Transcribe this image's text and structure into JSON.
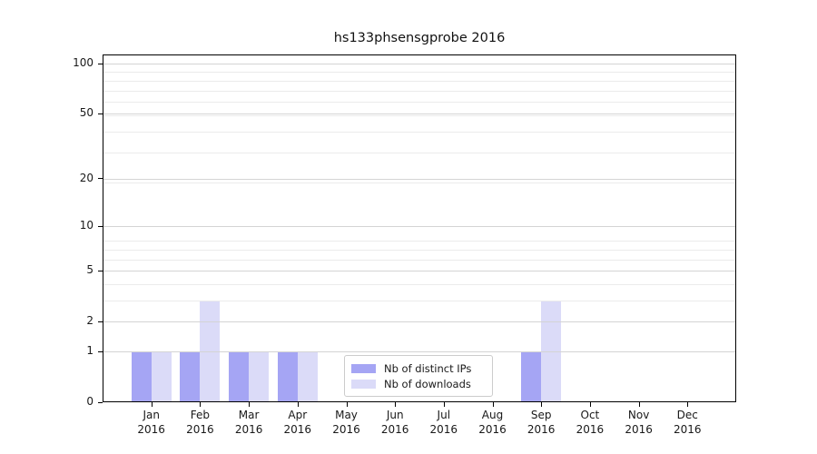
{
  "figure": {
    "title": "hs133phsensgprobe 2016"
  },
  "chart_data": {
    "type": "bar",
    "title": "hs133phsensgprobe 2016",
    "categories": [
      "Jan",
      "Feb",
      "Mar",
      "Apr",
      "May",
      "Jun",
      "Jul",
      "Aug",
      "Sep",
      "Oct",
      "Nov",
      "Dec"
    ],
    "year_label": "2016",
    "series": [
      {
        "name": "Nb of distinct IPs",
        "color": "#a5a5f4",
        "values": [
          1,
          1,
          1,
          1,
          0,
          0,
          0,
          0,
          1,
          0,
          0,
          0
        ]
      },
      {
        "name": "Nb of downloads",
        "color": "#dbdbf8",
        "values": [
          1,
          3,
          1,
          1,
          0,
          0,
          0,
          0,
          3,
          0,
          0,
          0
        ]
      }
    ],
    "yscale": "log1p",
    "ylim": [
      0,
      100
    ],
    "ytick_values": [
      0,
      1,
      2,
      5,
      10,
      20,
      50,
      100
    ],
    "minor_grid_values": [
      3,
      4,
      6,
      7,
      8,
      19,
      29,
      39,
      49,
      59,
      69,
      79,
      89
    ],
    "grid": true,
    "legend_position": "lower-center-inside",
    "colors": {
      "major_grid": "#d4d4d4",
      "minor_grid": "#ebebeb",
      "axis": "#000000",
      "text": "#191919",
      "legend_border": "#cccccc",
      "background": "#ffffff"
    }
  }
}
